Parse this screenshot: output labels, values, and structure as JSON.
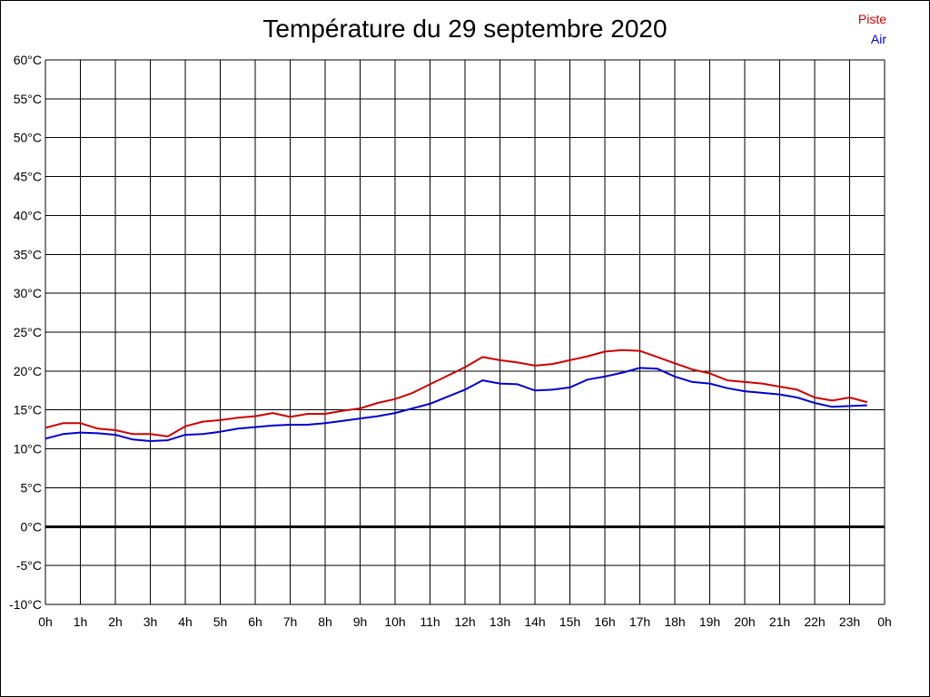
{
  "chart_data": {
    "type": "line",
    "title": "Température du 29 septembre 2020",
    "x_tick_labels": [
      "0h",
      "1h",
      "2h",
      "3h",
      "4h",
      "5h",
      "6h",
      "7h",
      "8h",
      "9h",
      "10h",
      "11h",
      "12h",
      "13h",
      "14h",
      "15h",
      "16h",
      "17h",
      "18h",
      "19h",
      "20h",
      "21h",
      "22h",
      "23h",
      "0h"
    ],
    "y_tick_labels": [
      "60°C",
      "55°C",
      "50°C",
      "45°C",
      "40°C",
      "35°C",
      "30°C",
      "25°C",
      "20°C",
      "15°C",
      "10°C",
      "5°C",
      "0°C",
      "-5°C",
      "-10°C"
    ],
    "xlim": [
      0,
      24
    ],
    "ylim": [
      -10,
      60
    ],
    "grid": true,
    "legend_placement": "top-right",
    "x": [
      0,
      0.5,
      1,
      1.5,
      2,
      2.5,
      3,
      3.5,
      4,
      4.5,
      5,
      5.5,
      6,
      6.5,
      7,
      7.5,
      8,
      8.5,
      9,
      9.5,
      10,
      10.5,
      11,
      11.5,
      12,
      12.5,
      13,
      13.5,
      14,
      14.5,
      15,
      15.5,
      16,
      16.5,
      17,
      17.5,
      18,
      18.5,
      19,
      19.5,
      20,
      20.5,
      21,
      21.5,
      22,
      22.5,
      23,
      23.5
    ],
    "series": [
      {
        "name": "Piste",
        "color": "#cc0000",
        "values": [
          12.7,
          13.3,
          13.3,
          12.6,
          12.4,
          11.9,
          11.9,
          11.6,
          12.9,
          13.5,
          13.7,
          14.0,
          14.2,
          14.6,
          14.1,
          14.5,
          14.5,
          14.9,
          15.2,
          15.9,
          16.4,
          17.2,
          18.3,
          19.4,
          20.5,
          21.8,
          21.4,
          21.1,
          20.7,
          20.9,
          21.4,
          21.9,
          22.5,
          22.7,
          22.6,
          21.8,
          21.0,
          20.2,
          19.7,
          18.8,
          18.6,
          18.4,
          18.0,
          17.6,
          16.6,
          16.2,
          16.6,
          16.0
        ]
      },
      {
        "name": "Air",
        "color": "#0000cc",
        "values": [
          11.3,
          11.9,
          12.1,
          12.0,
          11.8,
          11.2,
          11.0,
          11.1,
          11.8,
          11.9,
          12.2,
          12.6,
          12.8,
          13.0,
          13.1,
          13.1,
          13.3,
          13.6,
          13.9,
          14.2,
          14.6,
          15.2,
          15.8,
          16.7,
          17.6,
          18.8,
          18.4,
          18.3,
          17.5,
          17.6,
          17.9,
          18.9,
          19.3,
          19.8,
          20.4,
          20.3,
          19.3,
          18.6,
          18.4,
          17.8,
          17.4,
          17.2,
          17.0,
          16.6,
          15.9,
          15.4,
          15.5,
          15.6
        ]
      }
    ]
  }
}
